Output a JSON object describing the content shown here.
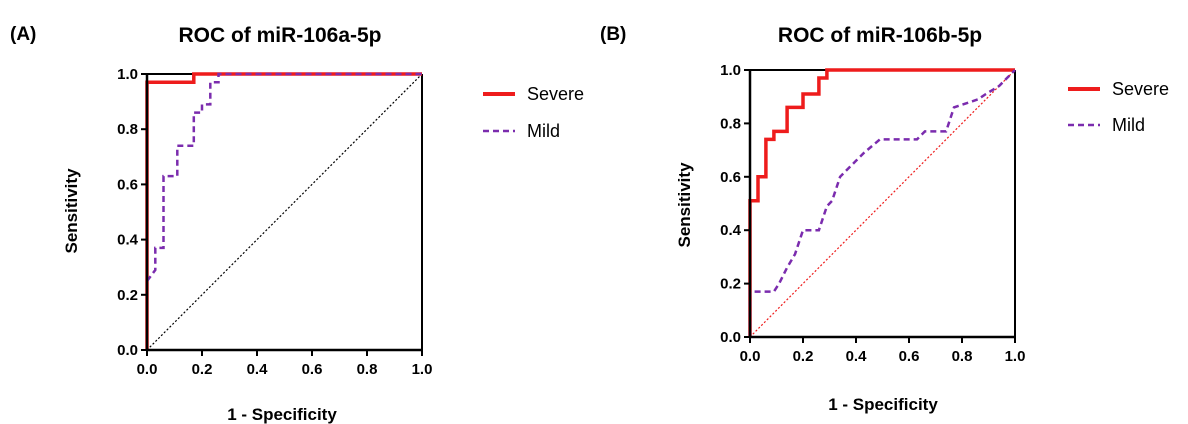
{
  "chart_data": [
    {
      "type": "line",
      "panel_label": "(A)",
      "title": "ROC of miR-106a-5p",
      "xlabel": "1 - Specificity",
      "ylabel": "Sensitivity",
      "xlim": [
        0,
        1
      ],
      "ylim": [
        0,
        1
      ],
      "x_ticks": [
        "0.0",
        "0.2",
        "0.4",
        "0.6",
        "0.8",
        "1.0"
      ],
      "y_ticks": [
        "0.0",
        "0.2",
        "0.4",
        "0.6",
        "0.8",
        "1.0"
      ],
      "reference_line": {
        "x": [
          0,
          1
        ],
        "y": [
          0,
          1
        ],
        "color": "#000000",
        "style": "dotted"
      },
      "legend_position": "right",
      "series": [
        {
          "name": "Severe",
          "color": "#ee1c1c",
          "style": "solid",
          "x": [
            0,
            0,
            0.17,
            0.17,
            1
          ],
          "y": [
            0,
            0.97,
            0.97,
            1.0,
            1.0
          ]
        },
        {
          "name": "Mild",
          "color": "#7b2cae",
          "style": "dashed",
          "x": [
            0,
            0.03,
            0.03,
            0.06,
            0.06,
            0.11,
            0.11,
            0.17,
            0.17,
            0.2,
            0.2,
            0.23,
            0.23,
            0.26,
            0.26,
            1
          ],
          "y": [
            0.25,
            0.29,
            0.37,
            0.37,
            0.63,
            0.63,
            0.74,
            0.74,
            0.86,
            0.86,
            0.89,
            0.89,
            0.97,
            0.97,
            1.0,
            1.0
          ]
        }
      ]
    },
    {
      "type": "line",
      "panel_label": "(B)",
      "title": "ROC of miR-106b-5p",
      "xlabel": "1 - Specificity",
      "ylabel": "Sensitivity",
      "xlim": [
        0,
        1
      ],
      "ylim": [
        0,
        1
      ],
      "x_ticks": [
        "0.0",
        "0.2",
        "0.4",
        "0.6",
        "0.8",
        "1.0"
      ],
      "y_ticks": [
        "0.0",
        "0.2",
        "0.4",
        "0.6",
        "0.8",
        "1.0"
      ],
      "reference_line": {
        "x": [
          0,
          1
        ],
        "y": [
          0,
          1
        ],
        "color": "#ee1c1c",
        "style": "dotted"
      },
      "legend_position": "right",
      "series": [
        {
          "name": "Severe",
          "color": "#ee1c1c",
          "style": "solid",
          "x": [
            0,
            0,
            0.03,
            0.03,
            0.06,
            0.06,
            0.09,
            0.09,
            0.14,
            0.14,
            0.2,
            0.2,
            0.26,
            0.26,
            0.29,
            0.29,
            1
          ],
          "y": [
            0,
            0.51,
            0.51,
            0.6,
            0.6,
            0.74,
            0.74,
            0.77,
            0.77,
            0.86,
            0.86,
            0.91,
            0.91,
            0.97,
            0.97,
            1.0,
            1.0
          ]
        },
        {
          "name": "Mild",
          "color": "#7b2cae",
          "style": "dashed",
          "x": [
            0,
            0,
            0.09,
            0.11,
            0.14,
            0.17,
            0.2,
            0.26,
            0.29,
            0.31,
            0.34,
            0.37,
            0.4,
            0.43,
            0.49,
            0.63,
            0.66,
            0.74,
            0.77,
            0.86,
            0.89,
            0.94,
            0.97,
            1.0
          ],
          "y": [
            0,
            0.17,
            0.17,
            0.2,
            0.26,
            0.31,
            0.4,
            0.4,
            0.49,
            0.51,
            0.6,
            0.63,
            0.66,
            0.69,
            0.74,
            0.74,
            0.77,
            0.77,
            0.86,
            0.89,
            0.91,
            0.94,
            0.97,
            1.0
          ]
        }
      ]
    }
  ]
}
